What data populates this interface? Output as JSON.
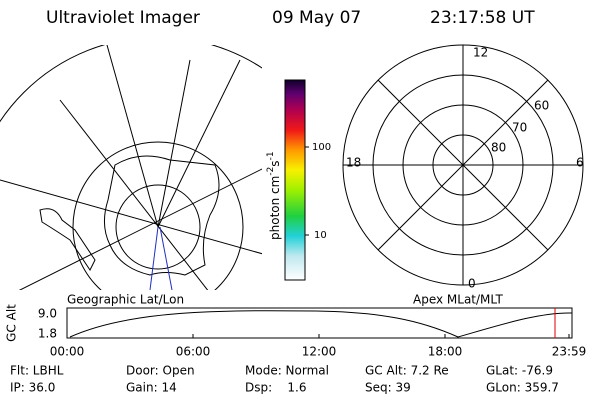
{
  "header": {
    "instrument": "Ultraviolet Imager",
    "date": "09 May 07",
    "time": "23:17:58 UT"
  },
  "colorbar": {
    "label": "photon cm",
    "exp1": "-2",
    "unit2": "s",
    "exp2": "-1",
    "ticks": [
      "100",
      "10"
    ]
  },
  "polar": {
    "mlt_labels": [
      "12",
      "18",
      "6",
      "0"
    ],
    "lat_labels": [
      "60",
      "70",
      "80"
    ]
  },
  "captions": {
    "left": "Geographic Lat/Lon",
    "right": "Apex MLat/MLT"
  },
  "orbit": {
    "ylabel": "GC Alt",
    "yticks": [
      "9.0",
      "1.8"
    ],
    "xticks": [
      "00:00",
      "06:00",
      "12:00",
      "18:00",
      "23:59"
    ]
  },
  "footer": {
    "rows": [
      [
        "Flt: LBHL",
        "Door: Open",
        "Mode: Normal",
        "GC Alt: 7.2 Re",
        "GLat: -76.9"
      ],
      [
        "IP: 36.0",
        "Gain: 14",
        "Dsp:    1.6",
        "Seq: 39",
        "GLon: 359.7"
      ]
    ]
  }
}
